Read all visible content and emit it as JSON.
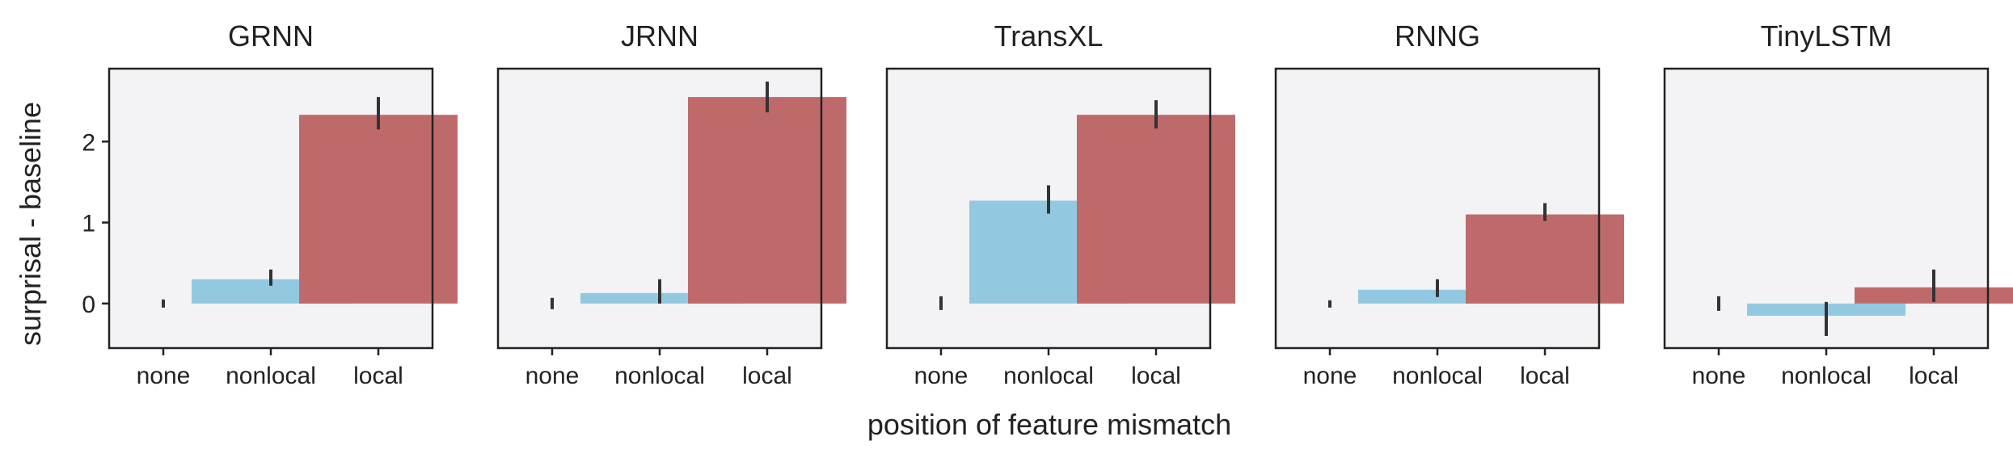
{
  "figure": {
    "ylabel": "surprisal - baseline",
    "xlabel": "position of feature mismatch"
  },
  "chart_data": {
    "type": "bar",
    "categories": [
      "none",
      "nonlocal",
      "local"
    ],
    "ylim": [
      -0.55,
      2.9
    ],
    "yticks": [
      0,
      1,
      2
    ],
    "shared_y": true,
    "grid": false,
    "colors": {
      "none": "#9ecae1",
      "nonlocal": "#93c9e0",
      "local": "#bf6a6a",
      "background": "#f3f3f6",
      "error": "#333333"
    },
    "panels": [
      {
        "title": "GRNN",
        "values": [
          0.0,
          0.3,
          2.33
        ],
        "errors": [
          [
            -0.05,
            0.05
          ],
          [
            0.22,
            0.42
          ],
          [
            2.15,
            2.55
          ]
        ]
      },
      {
        "title": "JRNN",
        "values": [
          0.0,
          0.13,
          2.55
        ],
        "errors": [
          [
            -0.07,
            0.07
          ],
          [
            0.0,
            0.3
          ],
          [
            2.36,
            2.74
          ]
        ]
      },
      {
        "title": "TransXL",
        "values": [
          0.0,
          1.27,
          2.33
        ],
        "errors": [
          [
            -0.08,
            0.09
          ],
          [
            1.11,
            1.46
          ],
          [
            2.16,
            2.51
          ]
        ]
      },
      {
        "title": "RNNG",
        "values": [
          0.0,
          0.17,
          1.1
        ],
        "errors": [
          [
            -0.05,
            0.04
          ],
          [
            0.08,
            0.3
          ],
          [
            1.02,
            1.24
          ]
        ]
      },
      {
        "title": "TinyLSTM",
        "values": [
          0.0,
          -0.15,
          0.2
        ],
        "errors": [
          [
            -0.09,
            0.09
          ],
          [
            -0.4,
            0.02
          ],
          [
            0.02,
            0.42
          ]
        ]
      }
    ]
  }
}
